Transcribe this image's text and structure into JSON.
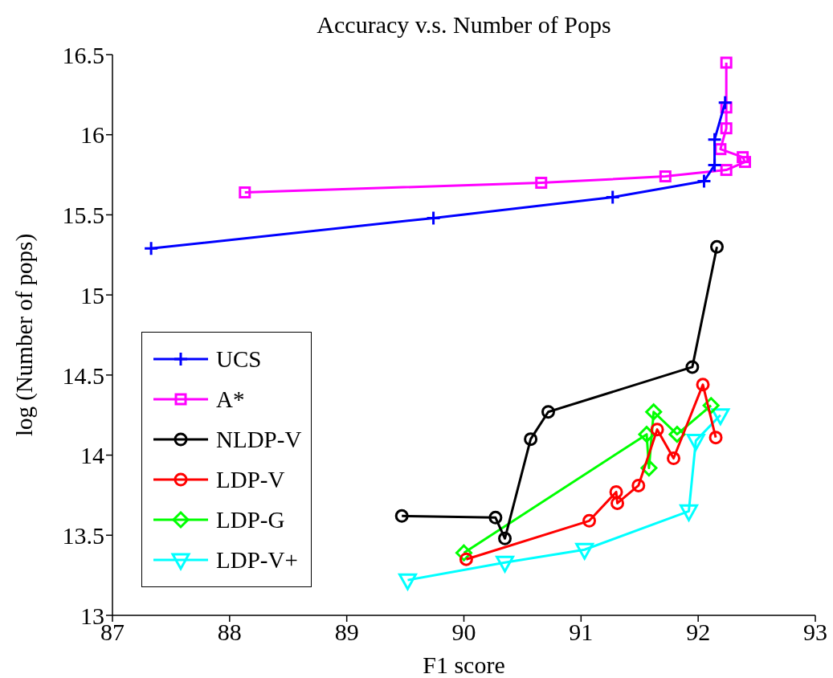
{
  "chart_data": {
    "type": "line",
    "title": "Accuracy v.s. Number of Pops",
    "xlabel": "F1 score",
    "ylabel": "log (Number of pops)",
    "xlim": [
      87,
      93
    ],
    "xticks": [
      87,
      88,
      89,
      90,
      91,
      92,
      93
    ],
    "ylim": [
      13,
      16.5
    ],
    "yticks": [
      13,
      13.5,
      14,
      14.5,
      15,
      15.5,
      16,
      16.5
    ],
    "grid": false,
    "legend": "bottom left",
    "line_style": "solid",
    "series": [
      {
        "name": "UCS",
        "color": "#0000ff",
        "marker": "cross",
        "x": [
          87.33,
          89.74,
          91.27,
          92.05,
          92.14,
          92.14,
          92.23
        ],
        "values": [
          15.29,
          15.48,
          15.61,
          15.71,
          15.81,
          15.97,
          16.2
        ]
      },
      {
        "name": "A*",
        "color": "#ff00ff",
        "marker": "square",
        "x": [
          88.13,
          90.66,
          91.72,
          92.24,
          92.4,
          92.38,
          92.19,
          92.24,
          92.24,
          92.24
        ],
        "values": [
          15.64,
          15.7,
          15.74,
          15.78,
          15.83,
          15.86,
          15.91,
          16.04,
          16.17,
          16.45
        ]
      },
      {
        "name": "NLDP-V",
        "color": "#000000",
        "marker": "circle",
        "x": [
          89.47,
          90.27,
          90.35,
          90.57,
          90.72,
          91.95,
          92.16
        ],
        "values": [
          13.62,
          13.61,
          13.48,
          14.1,
          14.27,
          14.55,
          15.3
        ]
      },
      {
        "name": "LDP-V",
        "color": "#ff0000",
        "marker": "circle",
        "x": [
          90.02,
          91.07,
          91.3,
          91.31,
          91.49,
          91.65,
          91.79,
          92.04,
          92.15
        ],
        "values": [
          13.35,
          13.59,
          13.77,
          13.7,
          13.81,
          14.16,
          13.98,
          14.44,
          14.11
        ]
      },
      {
        "name": "LDP-G",
        "color": "#00ff00",
        "marker": "diamond",
        "x": [
          90.0,
          91.56,
          91.58,
          91.62,
          91.82,
          92.11
        ],
        "values": [
          13.39,
          14.13,
          13.92,
          14.27,
          14.13,
          14.31
        ]
      },
      {
        "name": "LDP-V+",
        "color": "#00ffff",
        "marker": "triangle",
        "x": [
          89.52,
          90.35,
          91.03,
          91.92,
          91.98,
          92.19
        ],
        "values": [
          13.22,
          13.33,
          13.41,
          13.65,
          14.09,
          14.25
        ]
      }
    ]
  }
}
